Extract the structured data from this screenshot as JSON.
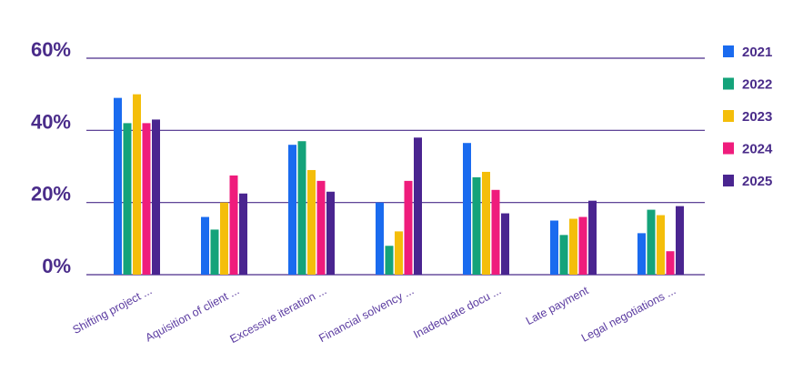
{
  "chart_data": {
    "type": "bar",
    "categories": [
      "Shifting project ...",
      "Aquisition of client ...",
      "Excessive iteration ...",
      "Financial solvency ...",
      "Inadequate docu  ...",
      "Late payment",
      "Legal negotiations ..."
    ],
    "series": [
      {
        "name": "2021",
        "color": "#1a6bef",
        "values": [
          49,
          16,
          36,
          20,
          36.5,
          15,
          11.5
        ]
      },
      {
        "name": "2022",
        "color": "#14a37a",
        "values": [
          42,
          12.5,
          37,
          8,
          27,
          11,
          18
        ]
      },
      {
        "name": "2023",
        "color": "#f4be0a",
        "values": [
          50,
          20,
          29,
          12,
          28.5,
          15.5,
          16.5
        ]
      },
      {
        "name": "2024",
        "color": "#ef1c7c",
        "values": [
          42,
          27.5,
          26,
          26,
          23.5,
          16,
          6.5
        ]
      },
      {
        "name": "2025",
        "color": "#4a2590",
        "values": [
          43,
          22.5,
          23,
          38,
          17,
          20.5,
          19
        ]
      }
    ],
    "yticks": [
      "0%",
      "20%",
      "40%",
      "60%"
    ],
    "ylim": [
      0,
      60
    ],
    "grid": true,
    "legend": "right",
    "title": "",
    "xlabel": "",
    "ylabel": ""
  }
}
